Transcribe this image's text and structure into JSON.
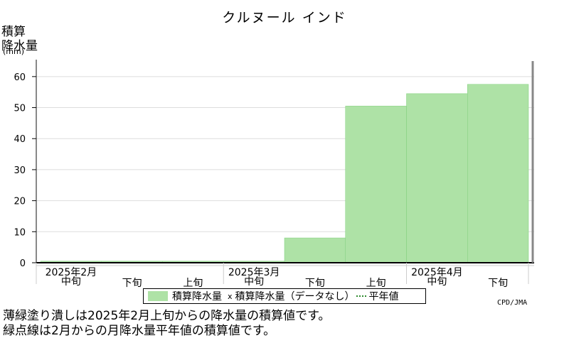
{
  "chart_data": {
    "type": "bar",
    "title": "クルヌール インド",
    "ylabel_lines": [
      "積算",
      "降水量",
      "(mm)"
    ],
    "ylim": [
      0,
      65
    ],
    "yticks": [
      0,
      10,
      20,
      30,
      40,
      50,
      60
    ],
    "grid": true,
    "categories": [
      "2月中旬",
      "2月下旬",
      "3月上旬",
      "3月中旬",
      "3月下旬",
      "4月上旬",
      "4月中旬",
      "4月下旬"
    ],
    "dekad_labels": [
      "中旬",
      "下旬",
      "上旬",
      "中旬",
      "下旬",
      "上旬",
      "中旬",
      "下旬"
    ],
    "month_labels": [
      {
        "text": "2025年2月",
        "dekad": 0
      },
      {
        "text": "2025年3月",
        "dekad": 3
      },
      {
        "text": "2025年4月",
        "dekad": 6
      }
    ],
    "series": [
      {
        "name": "積算降水量",
        "values": [
          0.5,
          0.5,
          0.5,
          0.5,
          8,
          50.5,
          54.5,
          57.5
        ],
        "color": "#aee2a6"
      }
    ],
    "legend": {
      "position": "bottom",
      "items": [
        "積算降水量",
        "x",
        "積算降水量（データなし）",
        "平年値"
      ]
    },
    "credit": "CPD/JMA",
    "notes": [
      "薄緑塗り潰しは2025年2月上旬からの降水量の積算値です。",
      "緑点線は2月からの月降水量平年値の積算値です。"
    ]
  }
}
